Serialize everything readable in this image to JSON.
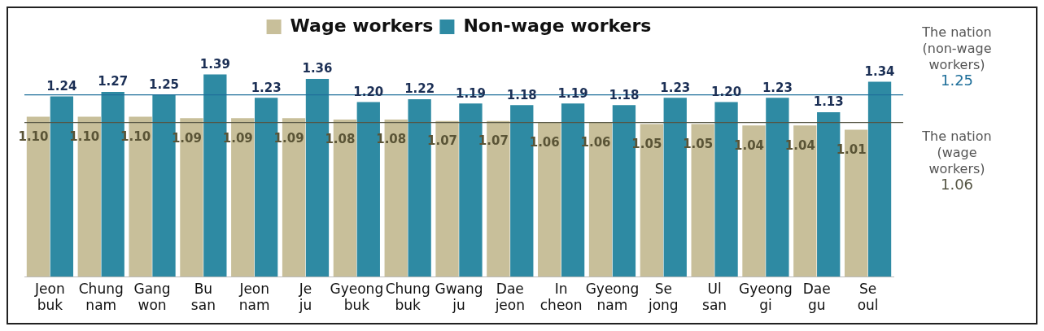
{
  "chart_data": {
    "type": "bar",
    "categories": [
      "Jeon buk",
      "Chung nam",
      "Gang won",
      "Bu san",
      "Jeon nam",
      "Je ju",
      "Gyeong buk",
      "Chung buk",
      "Gwang ju",
      "Dae jeon",
      "In cheon",
      "Gyeong nam",
      "Se jong",
      "Ul san",
      "Gyeong gi",
      "Dae gu",
      "Se oul"
    ],
    "series": [
      {
        "name": "Wage workers",
        "color": "#c8bf9a",
        "values": [
          1.1,
          1.1,
          1.1,
          1.09,
          1.09,
          1.09,
          1.08,
          1.08,
          1.07,
          1.07,
          1.06,
          1.06,
          1.05,
          1.05,
          1.04,
          1.04,
          1.01
        ],
        "value_labels": [
          "1.10",
          "1.10",
          "1.10",
          "1.09",
          "1.09",
          "1.09",
          "1.08",
          "1.08",
          "1.07",
          "1.07",
          "1.06",
          "1.06",
          "1.05",
          "1.05",
          "1.04",
          "1.04",
          "1.01"
        ]
      },
      {
        "name": "Non-wage workers",
        "color": "#2e8aa3",
        "values": [
          1.24,
          1.27,
          1.25,
          1.39,
          1.23,
          1.36,
          1.2,
          1.22,
          1.19,
          1.18,
          1.19,
          1.18,
          1.23,
          1.2,
          1.23,
          1.13,
          1.34
        ],
        "value_labels": [
          "1.24",
          "1.27",
          "1.25",
          "1.39",
          "1.23",
          "1.36",
          "1.20",
          "1.22",
          "1.19",
          "1.18",
          "1.19",
          "1.18",
          "1.23",
          "1.20",
          "1.23",
          "1.13",
          "1.34"
        ]
      }
    ],
    "tick_labels": "x",
    "grid": false,
    "legend": "top",
    "ref_lines": [
      {
        "axis": "y",
        "value": 1.25,
        "label": "The nation\n(non-wage\nworkers)\n1.25",
        "color": "#1f6f9a"
      },
      {
        "axis": "y",
        "value": 1.06,
        "label": "The nation\n(wage\nworkers)\n1.06",
        "color": "#555544"
      }
    ]
  }
}
